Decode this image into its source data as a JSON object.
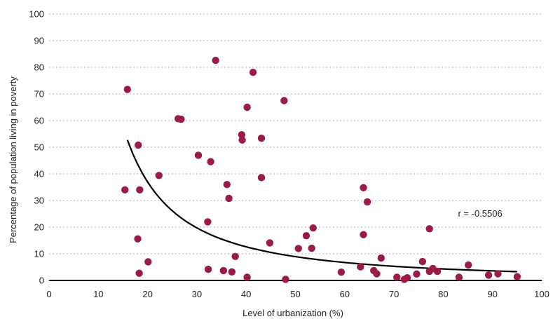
{
  "chart_data": {
    "type": "scatter",
    "xlabel": "Level of urbanization (%)",
    "ylabel": "Percentage of population living in poverty",
    "xlim": [
      0,
      100
    ],
    "ylim": [
      0,
      100
    ],
    "xticks": [
      0,
      10,
      20,
      30,
      40,
      50,
      60,
      70,
      80,
      90,
      100
    ],
    "yticks": [
      0,
      10,
      20,
      30,
      40,
      50,
      60,
      70,
      80,
      90,
      100
    ],
    "grid": "horizontal-dotted",
    "point_color": "#9b1b47",
    "trend_color": "#000000",
    "trendline": {
      "form": "power",
      "x_range": [
        15.9,
        95
      ]
    },
    "annotation": {
      "text": "r = -0.5506",
      "x": 83,
      "y": 25
    },
    "points": [
      {
        "x": 15.9,
        "y": 71.7
      },
      {
        "x": 15.4,
        "y": 34.0
      },
      {
        "x": 18.1,
        "y": 50.8
      },
      {
        "x": 18.4,
        "y": 34.0
      },
      {
        "x": 18.0,
        "y": 15.6
      },
      {
        "x": 18.3,
        "y": 2.7
      },
      {
        "x": 20.1,
        "y": 7.0
      },
      {
        "x": 22.3,
        "y": 39.4
      },
      {
        "x": 26.2,
        "y": 60.7
      },
      {
        "x": 26.8,
        "y": 60.5
      },
      {
        "x": 30.3,
        "y": 47.0
      },
      {
        "x": 32.8,
        "y": 44.6
      },
      {
        "x": 32.2,
        "y": 22.0
      },
      {
        "x": 32.3,
        "y": 4.2
      },
      {
        "x": 33.8,
        "y": 82.6
      },
      {
        "x": 35.4,
        "y": 3.7
      },
      {
        "x": 36.1,
        "y": 36.0
      },
      {
        "x": 36.5,
        "y": 30.8
      },
      {
        "x": 37.1,
        "y": 3.2
      },
      {
        "x": 37.8,
        "y": 9.0
      },
      {
        "x": 39.1,
        "y": 54.7
      },
      {
        "x": 39.2,
        "y": 52.7
      },
      {
        "x": 40.2,
        "y": 65.0
      },
      {
        "x": 40.2,
        "y": 1.2
      },
      {
        "x": 41.4,
        "y": 78.1
      },
      {
        "x": 43.1,
        "y": 53.4
      },
      {
        "x": 43.1,
        "y": 38.6
      },
      {
        "x": 44.8,
        "y": 14.1
      },
      {
        "x": 47.7,
        "y": 67.5
      },
      {
        "x": 48.0,
        "y": 0.4
      },
      {
        "x": 50.6,
        "y": 12.0
      },
      {
        "x": 52.2,
        "y": 16.8
      },
      {
        "x": 53.3,
        "y": 12.1
      },
      {
        "x": 53.6,
        "y": 19.7
      },
      {
        "x": 59.3,
        "y": 3.1
      },
      {
        "x": 63.2,
        "y": 5.1
      },
      {
        "x": 63.8,
        "y": 34.8
      },
      {
        "x": 63.8,
        "y": 17.2
      },
      {
        "x": 64.6,
        "y": 29.5
      },
      {
        "x": 65.9,
        "y": 3.7
      },
      {
        "x": 66.5,
        "y": 2.5
      },
      {
        "x": 67.4,
        "y": 8.4
      },
      {
        "x": 70.6,
        "y": 1.2
      },
      {
        "x": 72.1,
        "y": 0.4
      },
      {
        "x": 72.7,
        "y": 1.0
      },
      {
        "x": 74.6,
        "y": 2.4
      },
      {
        "x": 75.8,
        "y": 7.1
      },
      {
        "x": 77.2,
        "y": 19.4
      },
      {
        "x": 77.2,
        "y": 3.4
      },
      {
        "x": 77.9,
        "y": 4.5
      },
      {
        "x": 78.8,
        "y": 3.4
      },
      {
        "x": 83.2,
        "y": 1.2
      },
      {
        "x": 85.1,
        "y": 5.8
      },
      {
        "x": 89.2,
        "y": 2.0
      },
      {
        "x": 91.1,
        "y": 2.5
      },
      {
        "x": 95.0,
        "y": 1.4
      }
    ]
  }
}
